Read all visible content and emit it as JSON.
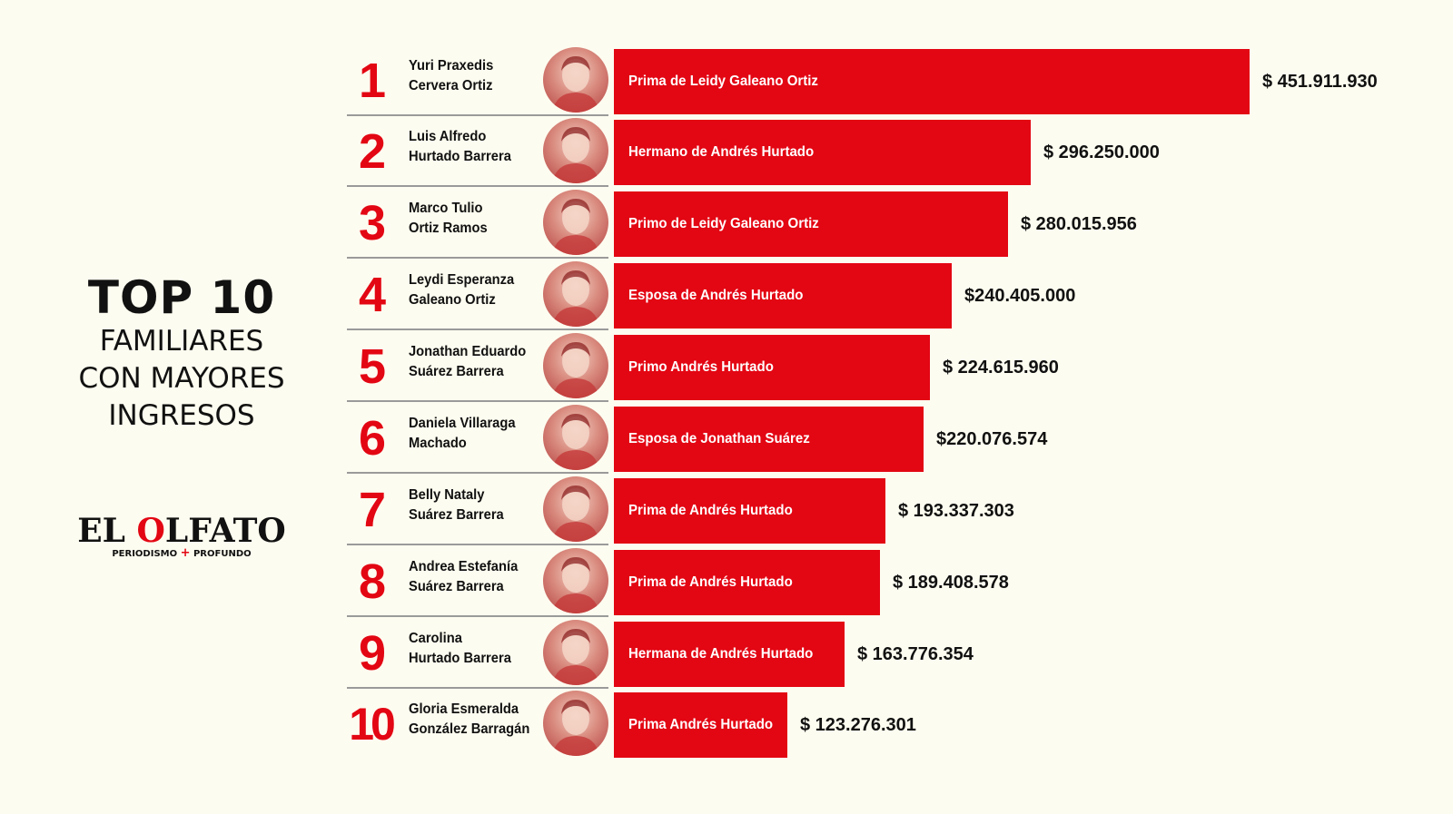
{
  "title": {
    "main": "TOP 10",
    "lines": [
      "FAMILIARES",
      "CON MAYORES",
      "INGRESOS"
    ]
  },
  "logo": {
    "name_start": "EL ",
    "name_accent": "O",
    "name_end": "LFATO",
    "tagline_start": "PERIODISMO ",
    "tagline_plus": "+",
    "tagline_end": " PROFUNDO"
  },
  "colors": {
    "bar": "#e30613",
    "background": "#fdfcf0",
    "text": "#111111"
  },
  "chart_data": {
    "type": "bar",
    "orientation": "horizontal",
    "title": "TOP 10 FAMILIARES CON MAYORES INGRESOS",
    "xlim": [
      0,
      451911930
    ],
    "items": [
      {
        "rank": "1",
        "name_line1": "Yuri Praxedis",
        "name_line2": "Cervera Ortiz",
        "relation": "Prima de Leidy Galeano Ortiz",
        "value": 451911930,
        "value_label": "$ 451.911.930"
      },
      {
        "rank": "2",
        "name_line1": "Luis Alfredo",
        "name_line2": "Hurtado Barrera",
        "relation": "Hermano de Andrés Hurtado",
        "value": 296250000,
        "value_label": "$ 296.250.000"
      },
      {
        "rank": "3",
        "name_line1": "Marco Tulio",
        "name_line2": "Ortiz Ramos",
        "relation": "Primo de Leidy Galeano Ortiz",
        "value": 280015956,
        "value_label": "$ 280.015.956"
      },
      {
        "rank": "4",
        "name_line1": "Leydi Esperanza",
        "name_line2": "Galeano Ortiz",
        "relation": "Esposa de Andrés Hurtado",
        "value": 240405000,
        "value_label": "$240.405.000"
      },
      {
        "rank": "5",
        "name_line1": "Jonathan Eduardo",
        "name_line2": "Suárez Barrera",
        "relation": "Primo Andrés Hurtado",
        "value": 224615960,
        "value_label": "$ 224.615.960"
      },
      {
        "rank": "6",
        "name_line1": "Daniela Villaraga",
        "name_line2": "Machado",
        "relation": "Esposa de Jonathan Suárez",
        "value": 220076574,
        "value_label": "$220.076.574"
      },
      {
        "rank": "7",
        "name_line1": "Belly Nataly",
        "name_line2": "Suárez Barrera",
        "relation": "Prima de Andrés Hurtado",
        "value": 193337303,
        "value_label": "$ 193.337.303"
      },
      {
        "rank": "8",
        "name_line1": "Andrea Estefanía",
        "name_line2": "Suárez Barrera",
        "relation": "Prima de Andrés Hurtado",
        "value": 189408578,
        "value_label": "$ 189.408.578"
      },
      {
        "rank": "9",
        "name_line1": "Carolina",
        "name_line2": "Hurtado Barrera",
        "relation": "Hermana de Andrés Hurtado",
        "value": 163776354,
        "value_label": "$ 163.776.354"
      },
      {
        "rank": "10",
        "name_line1": "Gloria Esmeralda",
        "name_line2": "González Barragán",
        "relation": "Prima Andrés Hurtado",
        "value": 123276301,
        "value_label": "$ 123.276.301"
      }
    ]
  }
}
